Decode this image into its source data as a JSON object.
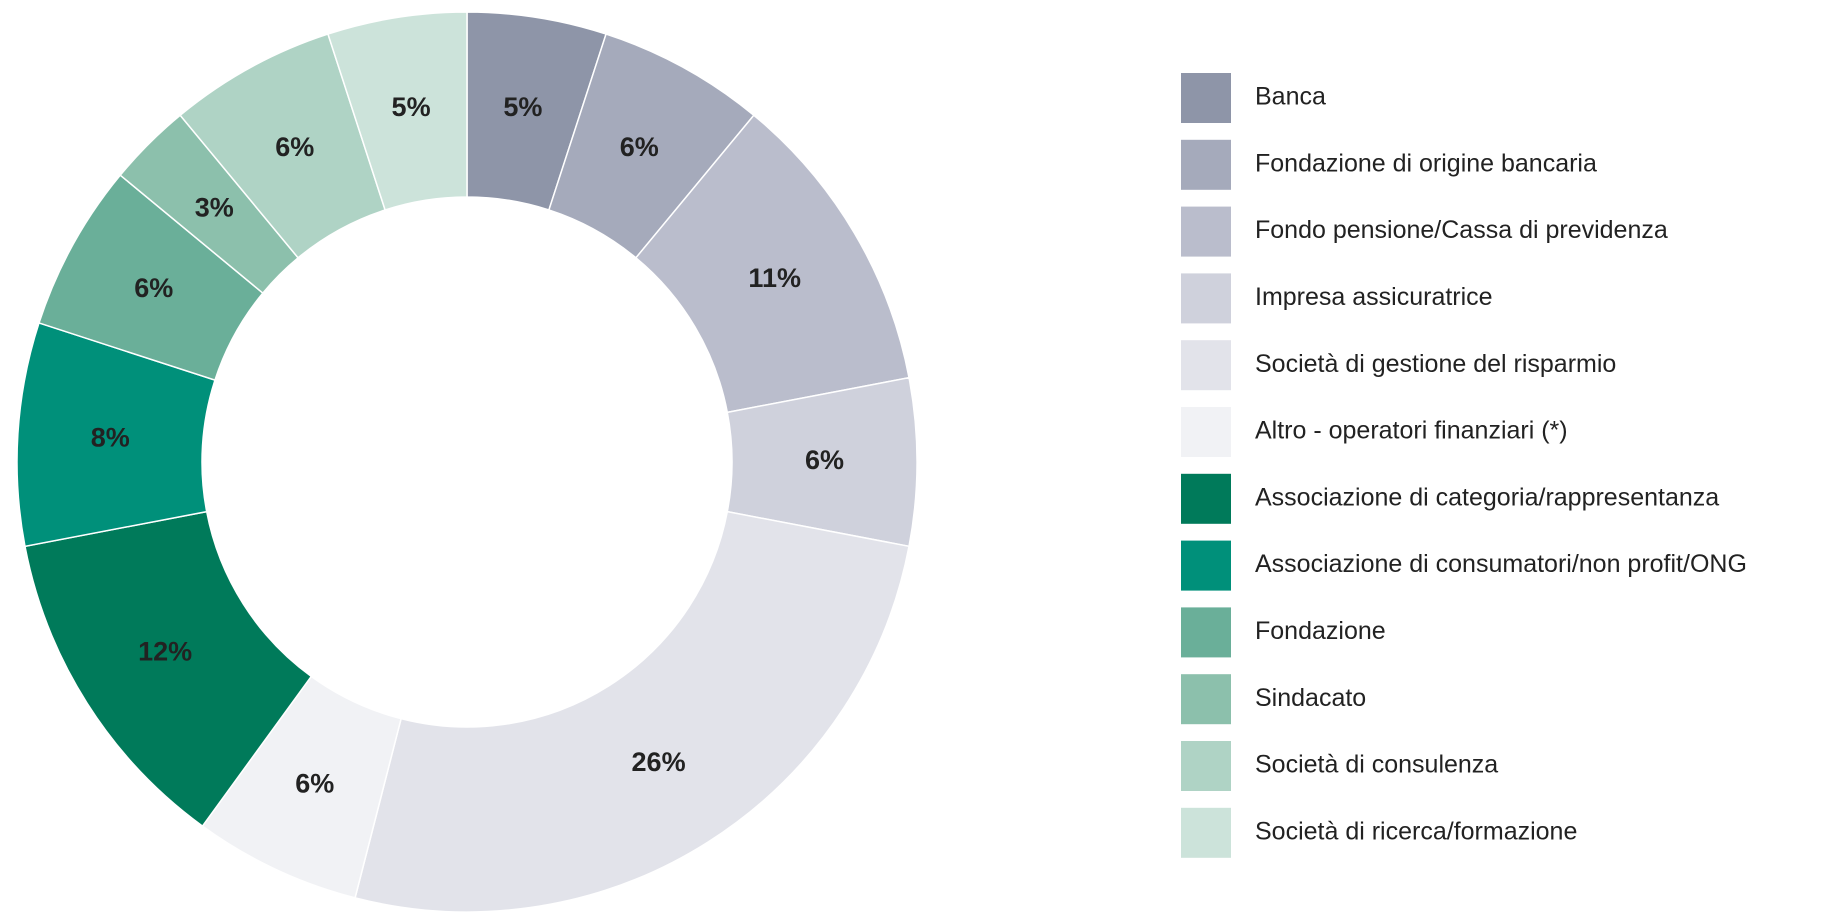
{
  "chart_data": {
    "type": "donut",
    "categories": [
      "Banca",
      "Fondazione di origine bancaria",
      "Fondo pensione/Cassa di previdenza",
      "Impresa assicuratrice",
      "Società di gestione del risparmio",
      "Altro - operatori finanziari (*)",
      "Associazione di categoria/rappresentanza",
      "Associazione di consumatori/non profit/ONG",
      "Fondazione",
      "Sindacato",
      "Società di consulenza",
      "Società di ricerca/formazione"
    ],
    "values": [
      5,
      6,
      11,
      6,
      26,
      6,
      12,
      8,
      6,
      3,
      6,
      5
    ],
    "value_labels": [
      "5%",
      "6%",
      "11%",
      "6%",
      "26%",
      "6%",
      "12%",
      "8%",
      "6%",
      "3%",
      "6%",
      "5%"
    ],
    "colors": [
      "#8e95a8",
      "#a5aabb",
      "#babdcc",
      "#cfd1dc",
      "#e2e3ea",
      "#f1f2f5",
      "#007a5a",
      "#00907a",
      "#6aaf99",
      "#8cc0ac",
      "#afd3c5",
      "#cce3da"
    ],
    "legend": "right"
  }
}
